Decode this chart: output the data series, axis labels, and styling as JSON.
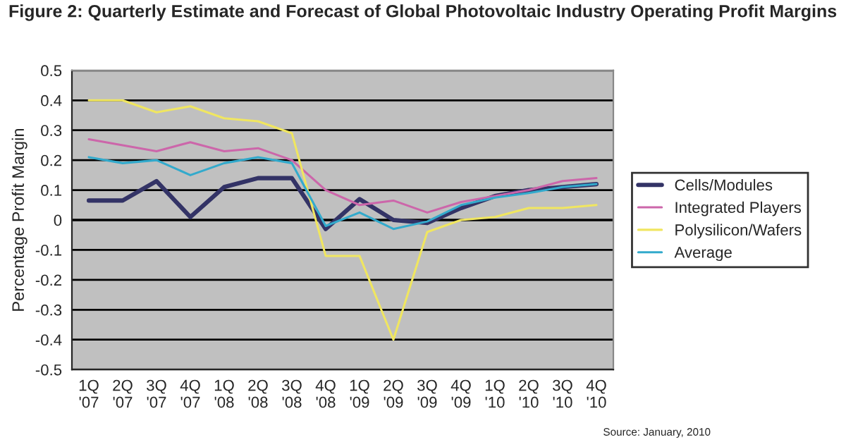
{
  "chart_data": {
    "type": "line",
    "title": "Figure 2: Quarterly Estimate and Forecast of Global Photovoltaic Industry Operating Profit Margins",
    "ylabel": "Percentage Profit Margin",
    "categories": [
      "1Q\n'07",
      "2Q\n'07",
      "3Q\n'07",
      "4Q\n'07",
      "1Q\n'08",
      "2Q\n'08",
      "3Q\n'08",
      "4Q\n'08",
      "1Q\n'09",
      "2Q\n'09",
      "3Q\n'09",
      "4Q\n'09",
      "1Q\n'10",
      "2Q\n'10",
      "3Q\n'10",
      "4Q\n'10"
    ],
    "series": [
      {
        "name": "Cells/Modules",
        "color": "#333366",
        "values": [
          0.065,
          0.065,
          0.13,
          0.01,
          0.11,
          0.14,
          0.14,
          -0.03,
          0.07,
          0.0,
          -0.01,
          0.04,
          0.08,
          0.1,
          0.11,
          0.12
        ]
      },
      {
        "name": "Integrated Players",
        "color": "#cc66aa",
        "values": [
          0.27,
          0.25,
          0.23,
          0.26,
          0.23,
          0.24,
          0.2,
          0.1,
          0.05,
          0.065,
          0.025,
          0.06,
          0.08,
          0.1,
          0.13,
          0.14
        ]
      },
      {
        "name": "Polysilicon/Wafers",
        "color": "#f0e660",
        "values": [
          0.4,
          0.4,
          0.36,
          0.38,
          0.34,
          0.33,
          0.29,
          -0.12,
          -0.12,
          -0.4,
          -0.04,
          0.0,
          0.01,
          0.04,
          0.04,
          0.05
        ]
      },
      {
        "name": "Average",
        "color": "#33aacc",
        "values": [
          0.21,
          0.19,
          0.2,
          0.15,
          0.19,
          0.21,
          0.19,
          -0.02,
          0.025,
          -0.03,
          -0.005,
          0.05,
          0.075,
          0.09,
          0.11,
          0.12
        ]
      }
    ],
    "ylim": [
      -0.5,
      0.5
    ],
    "yticks": [
      -0.5,
      -0.4,
      -0.3,
      -0.2,
      -0.1,
      0,
      0.1,
      0.2,
      0.3,
      0.4,
      0.5
    ],
    "grid": "y",
    "legend": "right",
    "marker": "none",
    "line_style": "solid",
    "annotations": [
      "Source: January, 2010"
    ]
  }
}
